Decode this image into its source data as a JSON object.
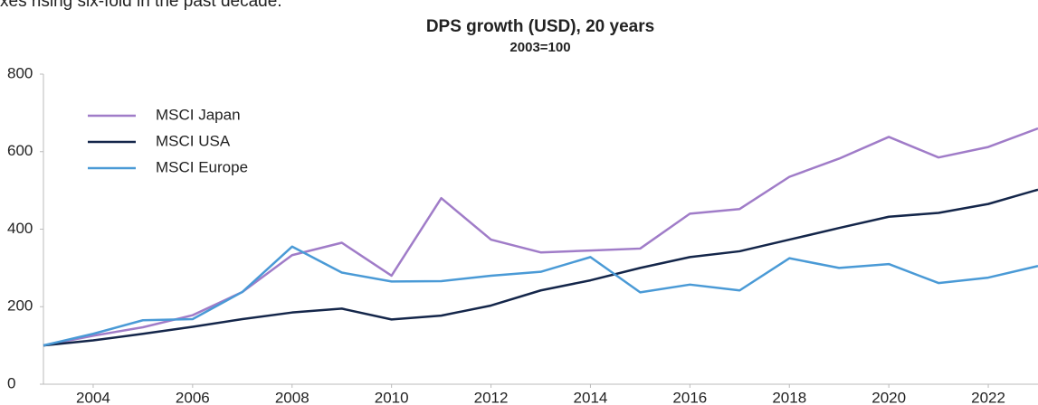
{
  "lead_text": "xes rising six-fold in the past decade.",
  "chart_data": {
    "type": "line",
    "title": "DPS growth (USD), 20 years",
    "subtitle": "2003=100",
    "x": [
      2003,
      2004,
      2005,
      2006,
      2007,
      2008,
      2009,
      2010,
      2011,
      2012,
      2013,
      2014,
      2015,
      2016,
      2017,
      2018,
      2019,
      2020,
      2021,
      2022,
      2023
    ],
    "series": [
      {
        "name": "MSCI Japan",
        "color": "#a07cc8",
        "values": [
          100,
          125,
          147,
          178,
          238,
          333,
          365,
          280,
          480,
          373,
          340,
          345,
          350,
          440,
          452,
          535,
          582,
          638,
          585,
          612,
          660
        ]
      },
      {
        "name": "MSCI USA",
        "color": "#14264a",
        "values": [
          100,
          113,
          130,
          148,
          168,
          185,
          195,
          167,
          177,
          203,
          242,
          268,
          300,
          328,
          343,
          373,
          403,
          432,
          442,
          465,
          502
        ]
      },
      {
        "name": "MSCI Europe",
        "color": "#4a9ad6",
        "values": [
          100,
          130,
          165,
          168,
          238,
          355,
          288,
          265,
          266,
          280,
          290,
          328,
          237,
          257,
          242,
          325,
          300,
          310,
          261,
          275,
          305
        ]
      }
    ],
    "xlim": [
      2003,
      2023
    ],
    "xticks": [
      2004,
      2006,
      2008,
      2010,
      2012,
      2014,
      2016,
      2018,
      2020,
      2022
    ],
    "ylim": [
      0,
      800
    ],
    "yticks": [
      0,
      200,
      400,
      600,
      800
    ],
    "legend": "upper left"
  }
}
